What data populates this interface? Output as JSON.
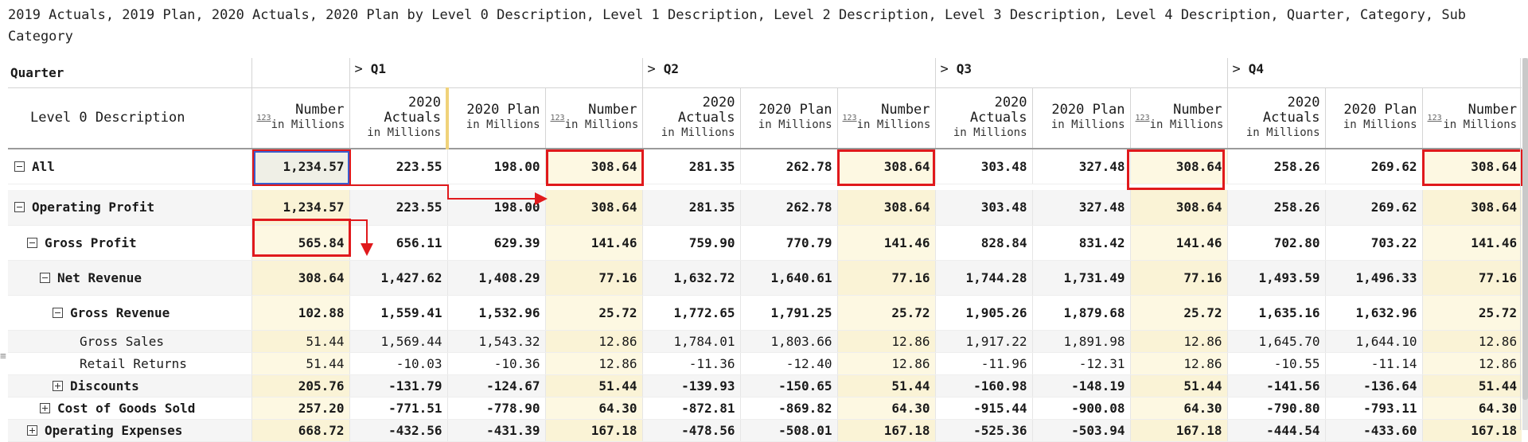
{
  "title": "2019 Actuals, 2019 Plan, 2020 Actuals, 2020 Plan by Level 0 Description, Level 1 Description, Level 2 Description, Level 3 Description, Level 4 Description, Quarter, Category, Sub Category",
  "header": {
    "quarter_label": "Quarter",
    "level0_label": "Level 0 Description",
    "quarters": [
      "Q1",
      "Q2",
      "Q3",
      "Q4"
    ],
    "number_label": "Number",
    "actuals_line1": "2020",
    "actuals_line2": "Actuals",
    "plan_label": "2020 Plan",
    "unit_label": "in Millions",
    "type_tag": "123"
  },
  "colors": {
    "highlight_border": "#e0191c",
    "highlight_fill": "#fdf8e2",
    "selection_border": "#3a5ccc"
  },
  "rows": [
    {
      "label": "All",
      "toggle": "minus",
      "indent": 0,
      "bold": true,
      "values": [
        "1,234.57",
        "223.55",
        "198.00",
        "308.64",
        "281.35",
        "262.78",
        "308.64",
        "303.48",
        "327.48",
        "308.64",
        "258.26",
        "269.62",
        "308.64"
      ]
    },
    {
      "label": "Operating Profit",
      "toggle": "minus",
      "indent": 0,
      "bold": true,
      "values": [
        "1,234.57",
        "223.55",
        "198.00",
        "308.64",
        "281.35",
        "262.78",
        "308.64",
        "303.48",
        "327.48",
        "308.64",
        "258.26",
        "269.62",
        "308.64"
      ]
    },
    {
      "label": "Gross Profit",
      "toggle": "minus",
      "indent": 1,
      "bold": true,
      "values": [
        "565.84",
        "656.11",
        "629.39",
        "141.46",
        "759.90",
        "770.79",
        "141.46",
        "828.84",
        "831.42",
        "141.46",
        "702.80",
        "703.22",
        "141.46"
      ]
    },
    {
      "label": "Net Revenue",
      "toggle": "minus",
      "indent": 2,
      "bold": true,
      "values": [
        "308.64",
        "1,427.62",
        "1,408.29",
        "77.16",
        "1,632.72",
        "1,640.61",
        "77.16",
        "1,744.28",
        "1,731.49",
        "77.16",
        "1,493.59",
        "1,496.33",
        "77.16"
      ]
    },
    {
      "label": "Gross Revenue",
      "toggle": "minus",
      "indent": 3,
      "bold": true,
      "values": [
        "102.88",
        "1,559.41",
        "1,532.96",
        "25.72",
        "1,772.65",
        "1,791.25",
        "25.72",
        "1,905.26",
        "1,879.68",
        "25.72",
        "1,635.16",
        "1,632.96",
        "25.72"
      ]
    },
    {
      "label": "Gross Sales",
      "toggle": "none",
      "indent": 4,
      "bold": false,
      "values": [
        "51.44",
        "1,569.44",
        "1,543.32",
        "12.86",
        "1,784.01",
        "1,803.66",
        "12.86",
        "1,917.22",
        "1,891.98",
        "12.86",
        "1,645.70",
        "1,644.10",
        "12.86"
      ]
    },
    {
      "label": "Retail Returns",
      "toggle": "none",
      "indent": 4,
      "bold": false,
      "values": [
        "51.44",
        "-10.03",
        "-10.36",
        "12.86",
        "-11.36",
        "-12.40",
        "12.86",
        "-11.96",
        "-12.31",
        "12.86",
        "-10.55",
        "-11.14",
        "12.86"
      ]
    },
    {
      "label": "Discounts",
      "toggle": "plus",
      "indent": 3,
      "bold": true,
      "values": [
        "205.76",
        "-131.79",
        "-124.67",
        "51.44",
        "-139.93",
        "-150.65",
        "51.44",
        "-160.98",
        "-148.19",
        "51.44",
        "-141.56",
        "-136.64",
        "51.44"
      ]
    },
    {
      "label": "Cost of Goods Sold",
      "toggle": "plus",
      "indent": 2,
      "bold": true,
      "values": [
        "257.20",
        "-771.51",
        "-778.90",
        "64.30",
        "-872.81",
        "-869.82",
        "64.30",
        "-915.44",
        "-900.08",
        "64.30",
        "-790.80",
        "-793.11",
        "64.30"
      ]
    },
    {
      "label": "Operating Expenses",
      "toggle": "plus",
      "indent": 1,
      "bold": true,
      "values": [
        "668.72",
        "-432.56",
        "-431.39",
        "167.18",
        "-478.56",
        "-508.01",
        "167.18",
        "-525.36",
        "-503.94",
        "167.18",
        "-444.54",
        "-433.60",
        "167.18"
      ]
    }
  ]
}
